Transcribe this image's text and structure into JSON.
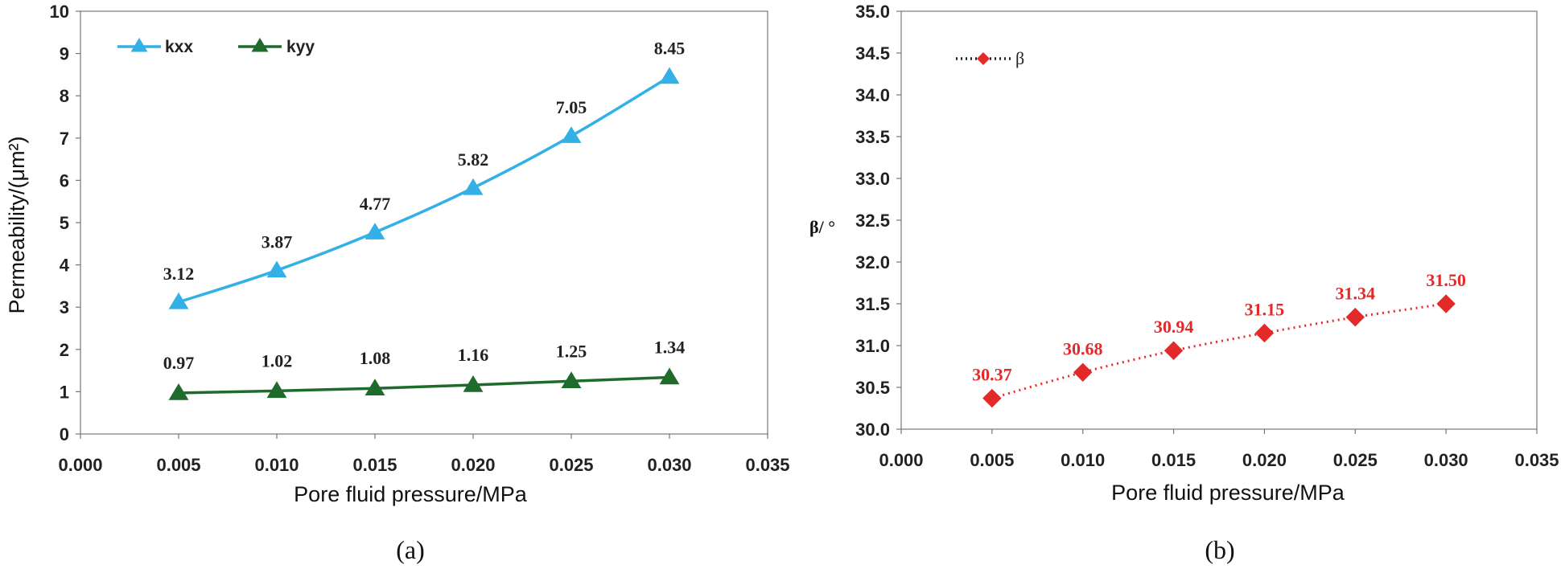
{
  "colors": {
    "kxx": "#33B0E6",
    "kyy": "#1E6B2C",
    "beta": "#E32A2A",
    "axis": "#777777"
  },
  "chart_data": [
    {
      "type": "line",
      "panel": "a",
      "caption": "(a)",
      "xlabel": "Pore fluid pressure/MPa",
      "ylabel": "Permeability/(μm²)",
      "xlim": [
        0,
        0.035
      ],
      "ylim": [
        0,
        10
      ],
      "x_ticks": [
        "0.000",
        "0.005",
        "0.010",
        "0.015",
        "0.020",
        "0.025",
        "0.030",
        "0.035"
      ],
      "y_ticks": [
        "0",
        "1",
        "2",
        "3",
        "4",
        "5",
        "6",
        "7",
        "8",
        "9",
        "10"
      ],
      "x": [
        0.005,
        0.01,
        0.015,
        0.02,
        0.025,
        0.03
      ],
      "series": [
        {
          "name": "kxx",
          "values": [
            3.12,
            3.87,
            4.77,
            5.82,
            7.05,
            8.45
          ],
          "labels": [
            "3.12",
            "3.87",
            "4.77",
            "5.82",
            "7.05",
            "8.45"
          ],
          "marker": "triangle"
        },
        {
          "name": "kyy",
          "values": [
            0.97,
            1.02,
            1.08,
            1.16,
            1.25,
            1.34
          ],
          "labels": [
            "0.97",
            "1.02",
            "1.08",
            "1.16",
            "1.25",
            "1.34"
          ],
          "marker": "triangle"
        }
      ],
      "legend": "top-left",
      "grid": false
    },
    {
      "type": "line",
      "panel": "b",
      "caption": "(b)",
      "xlabel": "Pore fluid pressure/MPa",
      "ylabel": "β/ °",
      "xlim": [
        0,
        0.035
      ],
      "ylim": [
        30,
        35
      ],
      "x_ticks": [
        "0.000",
        "0.005",
        "0.010",
        "0.015",
        "0.020",
        "0.025",
        "0.030",
        "0.035"
      ],
      "y_ticks": [
        "30.0",
        "30.5",
        "31.0",
        "31.5",
        "32.0",
        "32.5",
        "33.0",
        "33.5",
        "34.0",
        "34.5",
        "35.0"
      ],
      "x": [
        0.005,
        0.01,
        0.015,
        0.02,
        0.025,
        0.03
      ],
      "series": [
        {
          "name": "β",
          "values": [
            30.37,
            30.68,
            30.94,
            31.15,
            31.34,
            31.5
          ],
          "labels": [
            "30.37",
            "30.68",
            "30.94",
            "31.15",
            "31.34",
            "31.50"
          ],
          "marker": "diamond"
        }
      ],
      "legend": "top-left",
      "grid": false
    }
  ]
}
